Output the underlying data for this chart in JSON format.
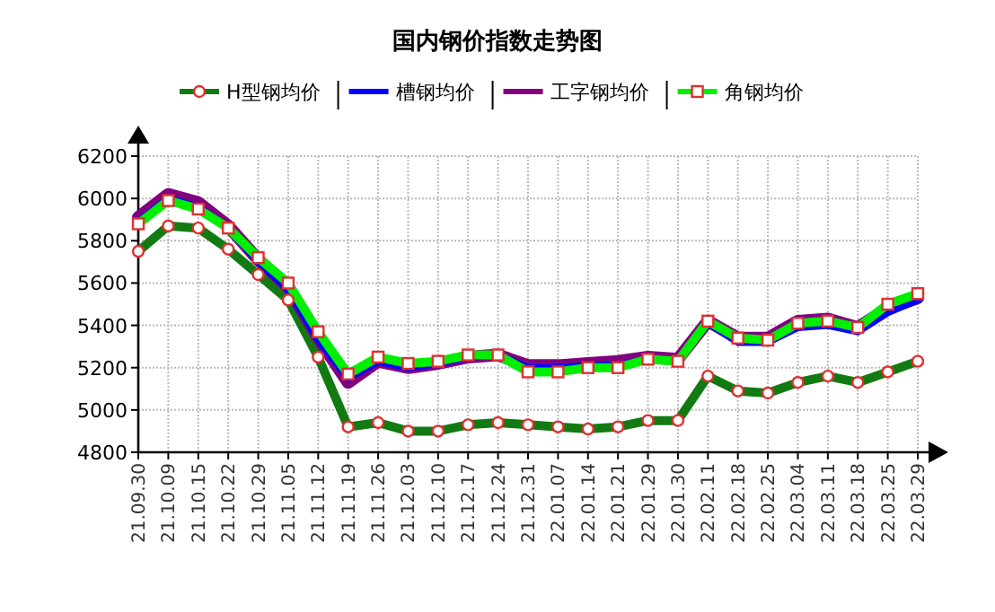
{
  "chart_data": {
    "type": "line",
    "title": "国内钢价指数走势图",
    "categories": [
      "21.09.30",
      "21.10.09",
      "21.10.15",
      "21.10.22",
      "21.10.29",
      "21.11.05",
      "21.11.12",
      "21.11.19",
      "21.11.26",
      "21.12.03",
      "21.12.10",
      "21.12.17",
      "21.12.24",
      "21.12.31",
      "22.01.07",
      "22.01.14",
      "22.01.21",
      "22.01.29",
      "22.01.30",
      "22.02.11",
      "22.02.18",
      "22.02.25",
      "22.03.04",
      "22.03.11",
      "22.03.18",
      "22.03.25",
      "22.03.29"
    ],
    "series": [
      {
        "name": "H型钢均价",
        "color": "#127a12",
        "marker": "circle",
        "values": [
          5750,
          5870,
          5860,
          5760,
          5640,
          5520,
          5250,
          4920,
          4940,
          4900,
          4900,
          4930,
          4940,
          4930,
          4920,
          4910,
          4920,
          4950,
          4950,
          5160,
          5090,
          5080,
          5130,
          5160,
          5130,
          5180,
          5230
        ]
      },
      {
        "name": "槽钢均价",
        "color": "#0000ff",
        "marker": "none",
        "values": [
          5890,
          6000,
          5960,
          5860,
          5700,
          5570,
          5330,
          5150,
          5230,
          5200,
          5220,
          5250,
          5260,
          5200,
          5200,
          5210,
          5210,
          5240,
          5230,
          5410,
          5320,
          5320,
          5390,
          5400,
          5370,
          5460,
          5520
        ]
      },
      {
        "name": "工字钢均价",
        "color": "#800080",
        "marker": "none",
        "values": [
          5910,
          6020,
          5980,
          5870,
          5710,
          5580,
          5340,
          5130,
          5230,
          5200,
          5220,
          5250,
          5260,
          5210,
          5210,
          5220,
          5230,
          5250,
          5240,
          5420,
          5340,
          5340,
          5420,
          5430,
          5390,
          5480,
          5530
        ]
      },
      {
        "name": "角钢均价",
        "color": "#00ee00",
        "marker": "square",
        "values": [
          5880,
          5990,
          5950,
          5860,
          5720,
          5600,
          5370,
          5170,
          5250,
          5220,
          5230,
          5260,
          5260,
          5180,
          5180,
          5200,
          5200,
          5240,
          5230,
          5420,
          5340,
          5330,
          5410,
          5420,
          5390,
          5500,
          5550
        ]
      }
    ],
    "ylim": [
      4800,
      6200
    ],
    "yticks": [
      4800,
      5000,
      5200,
      5400,
      5600,
      5800,
      6000,
      6200
    ],
    "grid": true,
    "legend": "top",
    "line_style": "solid"
  }
}
